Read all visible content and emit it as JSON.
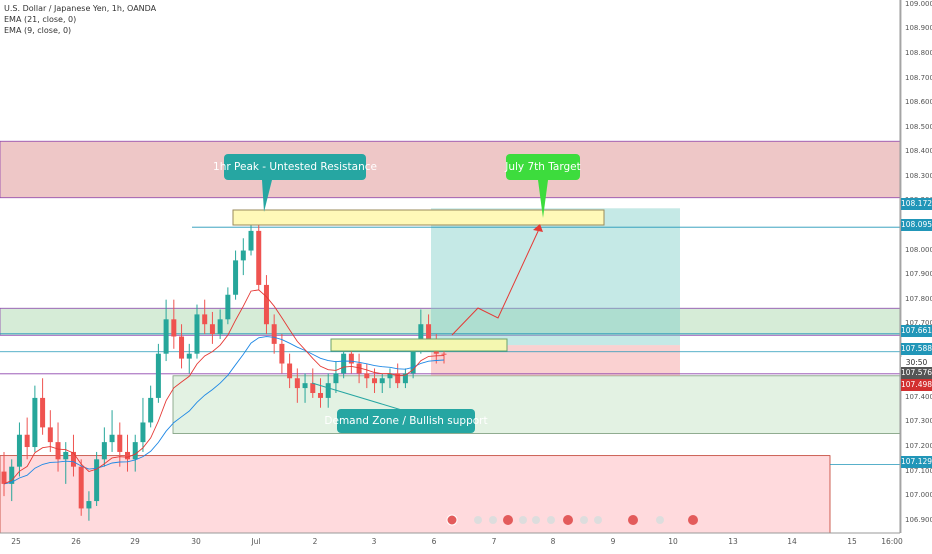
{
  "header": {
    "symbol_line": "U.S. Dollar / Japanese Yen, 1h, OANDA",
    "indicators": [
      "EMA (21, close, 0)",
      "EMA (9, close, 0)"
    ]
  },
  "annotations": {
    "peak": "1hr Peak - Untested Resistance",
    "target": "July 7th Target",
    "demand": "Demand Zone / Bullish support"
  },
  "chart_data": {
    "type": "candlestick",
    "y_axis": {
      "range": [
        106.85,
        109.02
      ],
      "tick_labels": [
        "109.000",
        "108.900",
        "108.800",
        "108.700",
        "108.600",
        "108.500",
        "108.400",
        "108.300",
        "108.200",
        "108.100",
        "108.000",
        "107.900",
        "107.800",
        "107.700",
        "107.600",
        "107.500",
        "107.400",
        "107.300",
        "107.200",
        "107.100",
        "107.000",
        "106.900"
      ]
    },
    "x_axis": {
      "tick_labels": [
        "25",
        "26",
        "29",
        "30",
        "Jul",
        "2",
        "3",
        "6",
        "7",
        "8",
        "9",
        "10",
        "13",
        "14",
        "15",
        "16:00"
      ]
    },
    "price_labels": [
      {
        "value": "108.172",
        "color": "#2196b8"
      },
      {
        "value": "108.095",
        "color": "#2196b8"
      },
      {
        "value": "107.661",
        "color": "#2196b8"
      },
      {
        "value": "107.588",
        "color": "#2196b8"
      },
      {
        "value": "30:50",
        "color": "#ffffff"
      },
      {
        "value": "107.576",
        "color": "#555555"
      },
      {
        "value": "107.498",
        "color": "#d32f2f"
      },
      {
        "value": "107.129",
        "color": "#2196b8"
      }
    ],
    "zones": [
      {
        "kind": "resistance",
        "from": 108.215,
        "to": 108.445,
        "color": "#e8b4b4"
      },
      {
        "kind": "support",
        "from": 107.655,
        "to": 107.765,
        "color": "#c8e6c9"
      },
      {
        "kind": "demand",
        "from": 107.255,
        "to": 107.49,
        "color": "#d9eed9"
      },
      {
        "kind": "supply-low",
        "from": 106.85,
        "to": 107.165,
        "color": "#ffcdd2"
      }
    ],
    "horizontal_lines": [
      108.095,
      107.661,
      107.588,
      107.498,
      107.129
    ],
    "position": {
      "entry": 107.615,
      "target": 108.172,
      "stop": 107.49
    },
    "candles": [
      [
        107.1,
        107.18,
        107.0,
        107.05
      ],
      [
        107.05,
        107.15,
        106.98,
        107.12
      ],
      [
        107.12,
        107.3,
        107.08,
        107.25
      ],
      [
        107.25,
        107.32,
        107.15,
        107.2
      ],
      [
        107.2,
        107.45,
        107.18,
        107.4
      ],
      [
        107.4,
        107.48,
        107.25,
        107.28
      ],
      [
        107.28,
        107.35,
        107.18,
        107.22
      ],
      [
        107.22,
        107.3,
        107.1,
        107.15
      ],
      [
        107.15,
        107.22,
        107.05,
        107.18
      ],
      [
        107.18,
        107.25,
        107.08,
        107.12
      ],
      [
        107.12,
        107.15,
        106.92,
        106.95
      ],
      [
        106.95,
        107.02,
        106.9,
        106.98
      ],
      [
        106.98,
        107.18,
        106.96,
        107.15
      ],
      [
        107.15,
        107.28,
        107.12,
        107.22
      ],
      [
        107.22,
        107.35,
        107.18,
        107.25
      ],
      [
        107.25,
        107.3,
        107.12,
        107.18
      ],
      [
        107.18,
        107.25,
        107.1,
        107.15
      ],
      [
        107.15,
        107.25,
        107.1,
        107.22
      ],
      [
        107.22,
        107.4,
        107.18,
        107.3
      ],
      [
        107.3,
        107.45,
        107.28,
        107.4
      ],
      [
        107.4,
        107.62,
        107.38,
        107.58
      ],
      [
        107.58,
        107.8,
        107.55,
        107.72
      ],
      [
        107.72,
        107.8,
        107.6,
        107.65
      ],
      [
        107.65,
        107.7,
        107.52,
        107.56
      ],
      [
        107.56,
        107.62,
        107.5,
        107.58
      ],
      [
        107.58,
        107.78,
        107.56,
        107.74
      ],
      [
        107.74,
        107.8,
        107.66,
        107.7
      ],
      [
        107.7,
        107.75,
        107.62,
        107.66
      ],
      [
        107.66,
        107.76,
        107.64,
        107.72
      ],
      [
        107.72,
        107.85,
        107.7,
        107.82
      ],
      [
        107.82,
        108.0,
        107.8,
        107.96
      ],
      [
        107.96,
        108.05,
        107.9,
        108.0
      ],
      [
        108.0,
        108.14,
        107.98,
        108.08
      ],
      [
        108.08,
        108.12,
        107.84,
        107.86
      ],
      [
        107.86,
        107.9,
        107.66,
        107.7
      ],
      [
        107.7,
        107.74,
        107.58,
        107.62
      ],
      [
        107.62,
        107.66,
        107.5,
        107.54
      ],
      [
        107.54,
        107.58,
        107.44,
        107.48
      ],
      [
        107.48,
        107.52,
        107.38,
        107.44
      ],
      [
        107.44,
        107.5,
        107.38,
        107.46
      ],
      [
        107.46,
        107.52,
        107.4,
        107.42
      ],
      [
        107.42,
        107.48,
        107.36,
        107.4
      ],
      [
        107.4,
        107.5,
        107.36,
        107.46
      ],
      [
        107.46,
        107.55,
        107.42,
        107.5
      ],
      [
        107.5,
        107.62,
        107.48,
        107.58
      ],
      [
        107.58,
        107.62,
        107.5,
        107.54
      ],
      [
        107.54,
        107.58,
        107.46,
        107.5
      ],
      [
        107.5,
        107.54,
        107.44,
        107.48
      ],
      [
        107.48,
        107.52,
        107.42,
        107.46
      ],
      [
        107.46,
        107.5,
        107.42,
        107.48
      ],
      [
        107.48,
        107.52,
        107.44,
        107.5
      ],
      [
        107.5,
        107.54,
        107.44,
        107.46
      ],
      [
        107.46,
        107.52,
        107.44,
        107.5
      ],
      [
        107.5,
        107.62,
        107.48,
        107.6
      ],
      [
        107.6,
        107.76,
        107.58,
        107.7
      ],
      [
        107.7,
        107.74,
        107.6,
        107.64
      ],
      [
        107.64,
        107.66,
        107.54,
        107.58
      ],
      [
        107.58,
        107.6,
        107.54,
        107.576
      ]
    ]
  }
}
